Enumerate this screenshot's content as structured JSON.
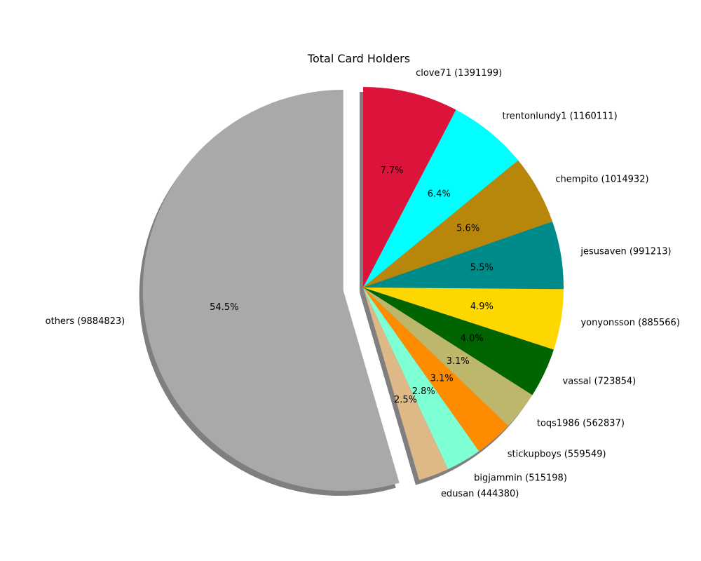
{
  "chart_data": {
    "type": "pie",
    "title": "Total Card Holders",
    "start_angle": 90,
    "direction": "clockwise",
    "shadow": true,
    "slices": [
      {
        "name": "clove71",
        "value": 1391199,
        "label": "clove71 (1391199)",
        "pct_label": "7.7%",
        "color": "#DC143C",
        "explode": 0
      },
      {
        "name": "trentonlundy1",
        "value": 1160111,
        "label": "trentonlundy1 (1160111)",
        "pct_label": "6.4%",
        "color": "#00FFFF",
        "explode": 0
      },
      {
        "name": "chempito",
        "value": 1014932,
        "label": "chempito (1014932)",
        "pct_label": "5.6%",
        "color": "#B8860B",
        "explode": 0
      },
      {
        "name": "jesusaven",
        "value": 991213,
        "label": "jesusaven (991213)",
        "pct_label": "5.5%",
        "color": "#008B8B",
        "explode": 0
      },
      {
        "name": "yonyonsson",
        "value": 885566,
        "label": "yonyonsson (885566)",
        "pct_label": "4.9%",
        "color": "#FFD700",
        "explode": 0
      },
      {
        "name": "vassal",
        "value": 723854,
        "label": "vassal (723854)",
        "pct_label": "4.0%",
        "color": "#006400",
        "explode": 0
      },
      {
        "name": "toqs1986",
        "value": 562837,
        "label": "toqs1986 (562837)",
        "pct_label": "3.1%",
        "color": "#BDB76B",
        "explode": 0
      },
      {
        "name": "stickupboys",
        "value": 559549,
        "label": "stickupboys (559549)",
        "pct_label": "3.1%",
        "color": "#FF8C00",
        "explode": 0
      },
      {
        "name": "bigjammin",
        "value": 515198,
        "label": "bigjammin (515198)",
        "pct_label": "2.8%",
        "color": "#7FFFD4",
        "explode": 0
      },
      {
        "name": "edusan",
        "value": 444380,
        "label": "edusan (444380)",
        "pct_label": "2.5%",
        "color": "#DEB887",
        "explode": 0
      },
      {
        "name": "others",
        "value": 9884823,
        "label": "others (9884823)",
        "pct_label": "54.5%",
        "color": "#A9A9A9",
        "explode": 0.1
      }
    ]
  }
}
